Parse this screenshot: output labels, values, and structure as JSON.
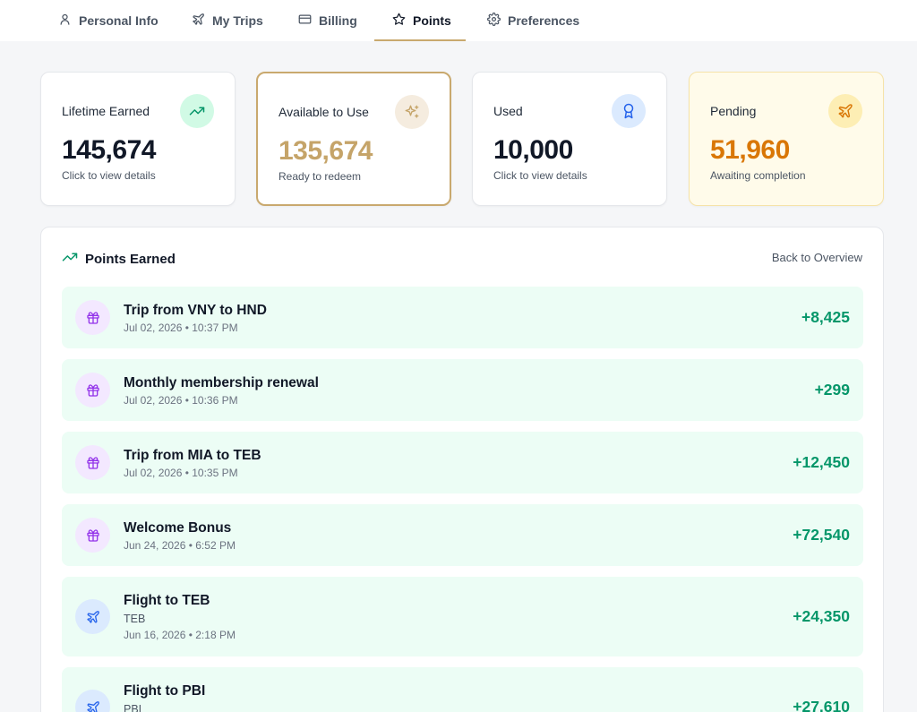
{
  "nav": {
    "tabs": [
      {
        "label": "Personal Info",
        "icon": "user-icon"
      },
      {
        "label": "My Trips",
        "icon": "plane-icon"
      },
      {
        "label": "Billing",
        "icon": "credit-card-icon"
      },
      {
        "label": "Points",
        "icon": "star-icon",
        "active": true
      },
      {
        "label": "Preferences",
        "icon": "gear-icon"
      }
    ]
  },
  "stats": [
    {
      "label": "Lifetime Earned",
      "value": "145,674",
      "sub": "Click to view details",
      "icon": "trending-up-icon",
      "value_color": "#111827",
      "icon_bg": "#d1fae5",
      "icon_color": "#059669"
    },
    {
      "label": "Available to Use",
      "value": "135,674",
      "sub": "Ready to redeem",
      "icon": "sparkles-icon",
      "value_color": "#c5a469",
      "icon_bg": "#f5ecdf",
      "icon_color": "#c5a469"
    },
    {
      "label": "Used",
      "value": "10,000",
      "sub": "Click to view details",
      "icon": "award-icon",
      "value_color": "#111827",
      "icon_bg": "#dbeafe",
      "icon_color": "#2563eb"
    },
    {
      "label": "Pending",
      "value": "51,960",
      "sub": "Awaiting completion",
      "icon": "plane-icon",
      "value_color": "#d97706",
      "icon_bg": "#fdeeb4",
      "icon_color": "#d97706"
    }
  ],
  "earned": {
    "title": "Points Earned",
    "back_label": "Back to Overview",
    "rows": [
      {
        "title": "Trip from VNY to HND",
        "detail": "",
        "date": "Jul 02, 2026 • 10:37 PM",
        "amount": "+8,425",
        "icon": "gift-icon"
      },
      {
        "title": "Monthly membership renewal",
        "detail": "",
        "date": "Jul 02, 2026 • 10:36 PM",
        "amount": "+299",
        "icon": "gift-icon"
      },
      {
        "title": "Trip from MIA to TEB",
        "detail": "",
        "date": "Jul 02, 2026 • 10:35 PM",
        "amount": "+12,450",
        "icon": "gift-icon"
      },
      {
        "title": "Welcome Bonus",
        "detail": "",
        "date": "Jun 24, 2026 • 6:52 PM",
        "amount": "+72,540",
        "icon": "gift-icon"
      },
      {
        "title": "Flight to TEB",
        "detail": "TEB",
        "date": "Jun 16, 2026 • 2:18 PM",
        "amount": "+24,350",
        "icon": "plane-icon"
      },
      {
        "title": "Flight to PBI",
        "detail": "PBI",
        "date": "",
        "amount": "+27,610",
        "icon": "plane-icon"
      }
    ]
  },
  "colors": {
    "accent_gold": "#c9a96e",
    "positive_green": "#059669",
    "row_bg": "#ecfdf5",
    "gift_icon_bg": "#f3e8ff",
    "gift_icon_color": "#9333ea",
    "plane_icon_bg": "#dbeafe",
    "plane_icon_color": "#2563eb"
  }
}
